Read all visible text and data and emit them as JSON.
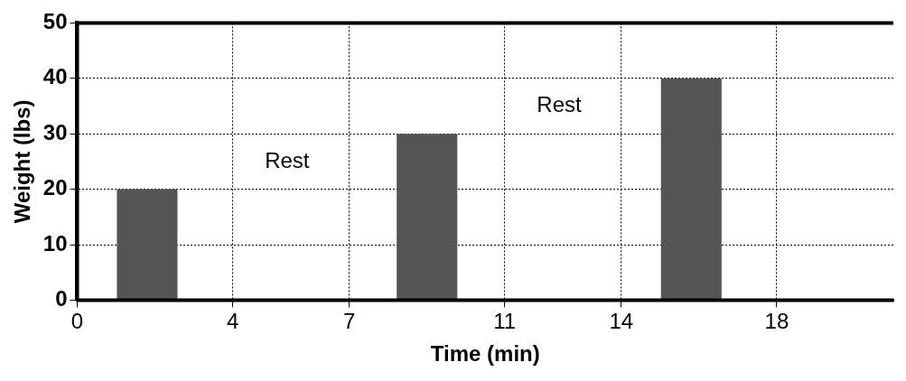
{
  "chart_data": {
    "type": "bar",
    "xlabel": "Time (min)",
    "ylabel": "Weight (lbs)",
    "x": [
      1.8,
      9,
      15.8
    ],
    "values": [
      20,
      30,
      40
    ],
    "color": "#555555",
    "xlim": [
      0,
      21
    ],
    "xticks": [
      0,
      4,
      7,
      11,
      14,
      18
    ],
    "ylim": [
      0,
      50
    ],
    "yticks": [
      0,
      10,
      20,
      30,
      40,
      50
    ],
    "grid": true,
    "line_style": "dotted",
    "annotations": [
      "Rest",
      "Rest"
    ]
  }
}
